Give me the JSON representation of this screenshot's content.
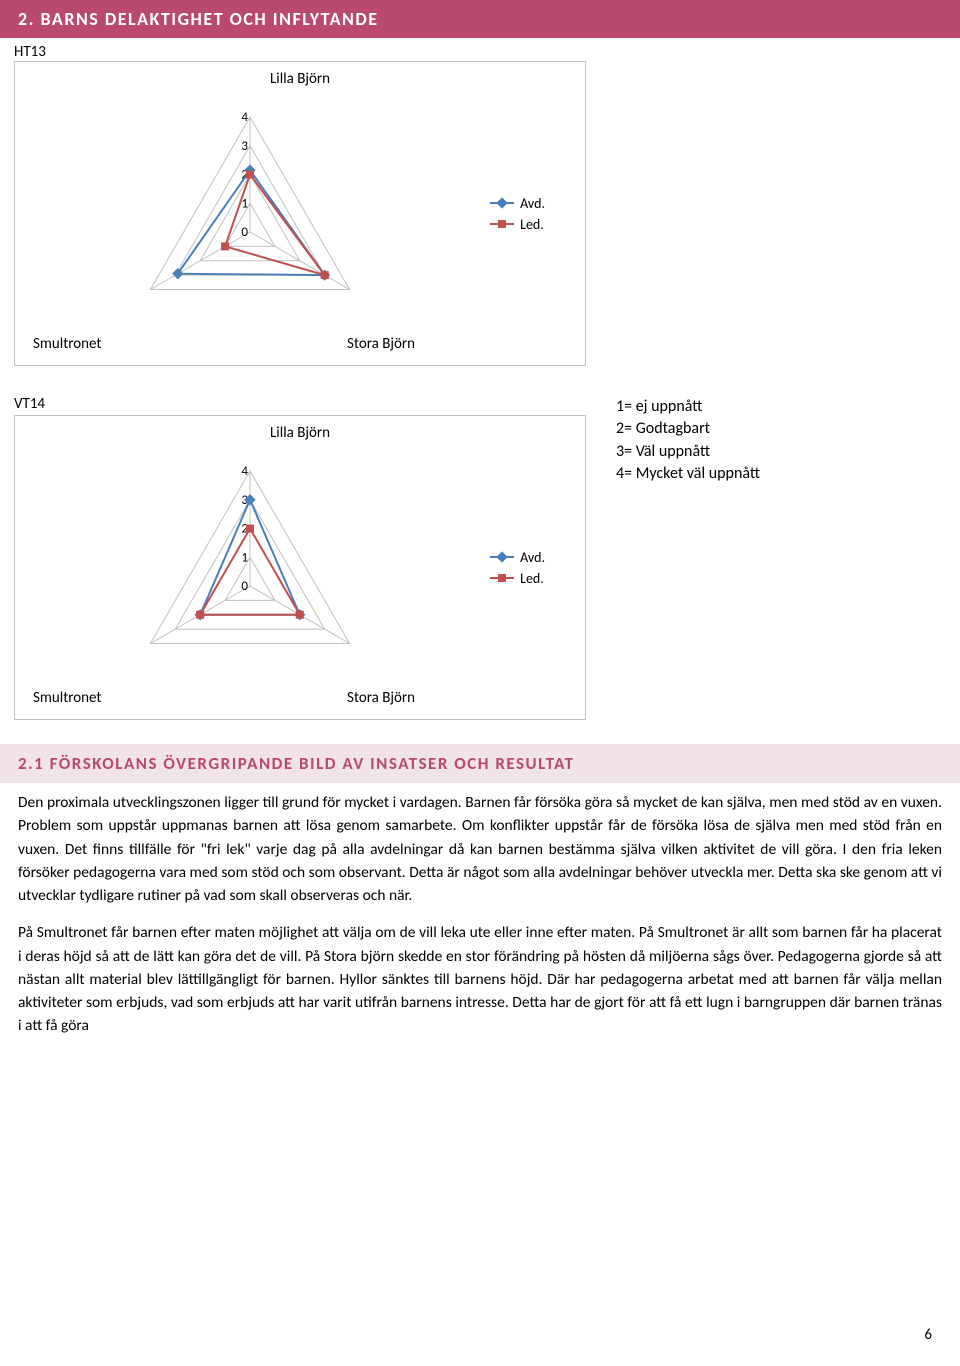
{
  "section": {
    "title": "2. BARNS DELAKTIGHET OCH INFLYTANDE",
    "ht_label": "HT13",
    "vt_label": "VT14"
  },
  "chart1": {
    "type": "radar",
    "axes": [
      "Lilla Björn",
      "Stora Björn",
      "Smultronet"
    ],
    "ticks": [
      "0",
      "1",
      "2",
      "3",
      "4"
    ],
    "max": 4,
    "series": [
      {
        "name": "Avd.",
        "color": "#4a7ebb",
        "marker": "diamond",
        "values": [
          2.15,
          3.0,
          2.9
        ]
      },
      {
        "name": "Led.",
        "color": "#c0504d",
        "marker": "square",
        "values": [
          2.0,
          3.0,
          1.0
        ]
      }
    ],
    "grid_color": "#c0c0c0",
    "background": "#ffffff",
    "line_width": 2
  },
  "chart2": {
    "type": "radar",
    "axes": [
      "Lilla Björn",
      "Stora Björn",
      "Smultronet"
    ],
    "ticks": [
      "0",
      "1",
      "2",
      "3",
      "4"
    ],
    "max": 4,
    "series": [
      {
        "name": "Avd.",
        "color": "#4a7ebb",
        "marker": "diamond",
        "values": [
          3.0,
          2.0,
          2.0
        ]
      },
      {
        "name": "Led.",
        "color": "#c0504d",
        "marker": "square",
        "values": [
          2.0,
          2.0,
          2.0
        ]
      }
    ],
    "grid_color": "#c0c0c0",
    "background": "#ffffff",
    "line_width": 2
  },
  "key": {
    "lines": [
      "1= ej uppnått",
      "2= Godtagbart",
      "3= Väl uppnått",
      "4= Mycket väl uppnått"
    ]
  },
  "subsection": {
    "title": "2.1 FÖRSKOLANS ÖVERGRIPANDE BILD AV INSATSER OCH RESULTAT"
  },
  "body": {
    "p1": "Den proximala utvecklingszonen ligger till grund för mycket i vardagen. Barnen får försöka göra så mycket de kan själva, men med stöd av en vuxen. Problem som uppstår uppmanas barnen att lösa genom samarbete. Om konflikter uppstår får de försöka lösa de själva men med stöd från en vuxen. Det finns tillfälle för \"fri lek\" varje dag på alla avdelningar då kan barnen bestämma själva vilken aktivitet de vill göra. I den fria leken försöker pedagogerna vara med som stöd och som observant. Detta är något som alla avdelningar behöver utveckla mer. Detta ska ske genom att vi utvecklar tydligare rutiner på vad som skall observeras och när.",
    "p2": "På Smultronet får barnen efter maten möjlighet att välja om de vill leka ute eller inne efter maten. På Smultronet är allt som barnen får ha placerat i deras höjd så att de lätt kan göra det de vill. På Stora björn skedde en stor förändring på hösten då miljöerna sågs över. Pedagogerna gjorde så att nästan allt material blev lättillgängligt för barnen. Hyllor sänktes till barnens höjd. Där har pedagogerna arbetat med att barnen får välja mellan aktiviteter som erbjuds, vad som erbjuds att har varit utifrån barnens intresse. Detta har de gjort för att få ett lugn i barngruppen där barnen tränas i att få göra"
  },
  "page_number": "6"
}
